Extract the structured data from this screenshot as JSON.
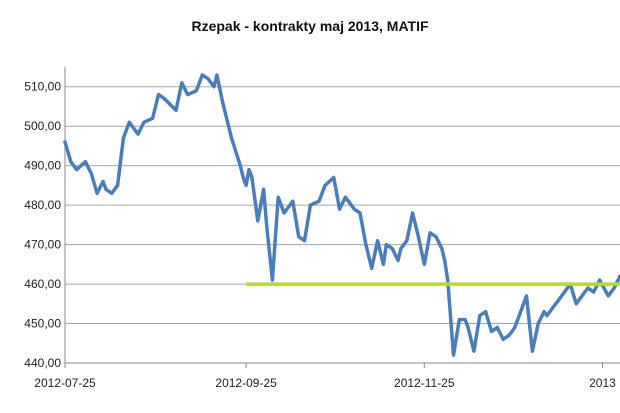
{
  "chart_data": {
    "type": "line",
    "title": "Rzepak - kontrakty maj 2013, MATIF",
    "xlabel": "",
    "ylabel": "",
    "ylim": [
      440,
      515
    ],
    "yticks": [
      "440,00",
      "450,00",
      "460,00",
      "470,00",
      "480,00",
      "490,00",
      "500,00",
      "510,00"
    ],
    "ytick_values": [
      440,
      450,
      460,
      470,
      480,
      490,
      500,
      510
    ],
    "xticks": [
      "2012-07-25",
      "2012-09-25",
      "2012-11-25",
      "2013"
    ],
    "xtick_values": [
      "2012-07-25",
      "2012-09-25",
      "2012-11-25",
      "2013-01-25"
    ],
    "xlim": [
      "2012-07-25",
      "2013-01-31"
    ],
    "grid": "horizontal",
    "legend": "none",
    "series": [
      {
        "color": "#4a7ebb",
        "x": [
          "2012-07-25",
          "2012-07-27",
          "2012-07-29",
          "2012-08-01",
          "2012-08-03",
          "2012-08-05",
          "2012-08-07",
          "2012-08-08",
          "2012-08-10",
          "2012-08-12",
          "2012-08-14",
          "2012-08-16",
          "2012-08-19",
          "2012-08-21",
          "2012-08-24",
          "2012-08-26",
          "2012-08-28",
          "2012-09-01",
          "2012-09-03",
          "2012-09-05",
          "2012-09-08",
          "2012-09-10",
          "2012-09-12",
          "2012-09-14",
          "2012-09-15",
          "2012-09-17",
          "2012-09-20",
          "2012-09-23",
          "2012-09-24",
          "2012-09-25",
          "2012-09-26",
          "2012-09-27",
          "2012-09-29",
          "2012-10-01",
          "2012-10-02",
          "2012-10-04",
          "2012-10-06",
          "2012-10-08",
          "2012-10-11",
          "2012-10-13",
          "2012-10-15",
          "2012-10-17",
          "2012-10-20",
          "2012-10-22",
          "2012-10-25",
          "2012-10-27",
          "2012-10-29",
          "2012-11-01",
          "2012-11-03",
          "2012-11-05",
          "2012-11-07",
          "2012-11-09",
          "2012-11-11",
          "2012-11-12",
          "2012-11-14",
          "2012-11-16",
          "2012-11-17",
          "2012-11-19",
          "2012-11-21",
          "2012-11-23",
          "2012-11-25",
          "2012-11-27",
          "2012-11-29",
          "2012-12-01",
          "2012-12-02",
          "2012-12-03",
          "2012-12-05",
          "2012-12-07",
          "2012-12-09",
          "2012-12-10",
          "2012-12-12",
          "2012-12-14",
          "2012-12-16",
          "2012-12-18",
          "2012-12-20",
          "2012-12-22",
          "2012-12-24",
          "2012-12-26",
          "2012-12-28",
          "2012-12-30",
          "2013-01-01",
          "2013-01-03",
          "2013-01-05",
          "2013-01-06",
          "2013-01-08",
          "2013-01-10",
          "2013-01-12",
          "2013-01-14",
          "2013-01-16",
          "2013-01-18",
          "2013-01-20",
          "2013-01-22",
          "2013-01-24",
          "2013-01-27",
          "2013-01-29",
          "2013-01-31"
        ],
        "y": [
          496,
          491,
          489,
          491,
          488,
          483,
          486,
          484,
          483,
          485,
          497,
          501,
          498,
          501,
          502,
          508,
          507,
          504,
          511,
          508,
          509,
          513,
          512,
          510,
          513,
          506,
          497,
          490,
          487,
          485,
          489,
          487,
          476,
          484,
          475,
          461,
          482,
          478,
          481,
          472,
          471,
          480,
          481,
          485,
          487,
          479,
          482,
          479,
          478,
          470,
          464,
          471,
          465,
          470,
          469,
          466,
          469,
          471,
          478,
          472,
          465,
          473,
          472,
          469,
          466,
          461,
          442,
          451,
          451,
          449,
          443,
          452,
          453,
          448,
          449,
          446,
          447,
          449,
          453,
          457,
          443,
          450,
          453,
          452,
          454,
          456,
          458,
          460,
          455,
          457,
          459,
          458,
          461,
          457,
          459,
          462
        ]
      }
    ],
    "reference_line": {
      "y": 460,
      "x_start": "2012-09-25",
      "x_end": "2013-01-31",
      "color": "#b4dc28"
    }
  }
}
